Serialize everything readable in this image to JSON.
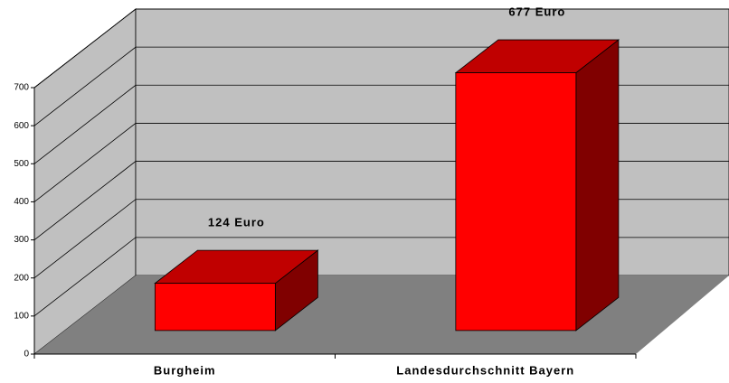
{
  "chart_data": {
    "type": "bar",
    "categories": [
      "Burgheim",
      "Landesdurchschnitt Bayern"
    ],
    "values": [
      124,
      677
    ],
    "value_labels": [
      "124 Euro",
      "677 Euro"
    ],
    "color": "#ff0000",
    "ylim": [
      0,
      700
    ],
    "yticks": [
      0,
      100,
      200,
      300,
      400,
      500,
      600,
      700
    ],
    "grid": true
  }
}
